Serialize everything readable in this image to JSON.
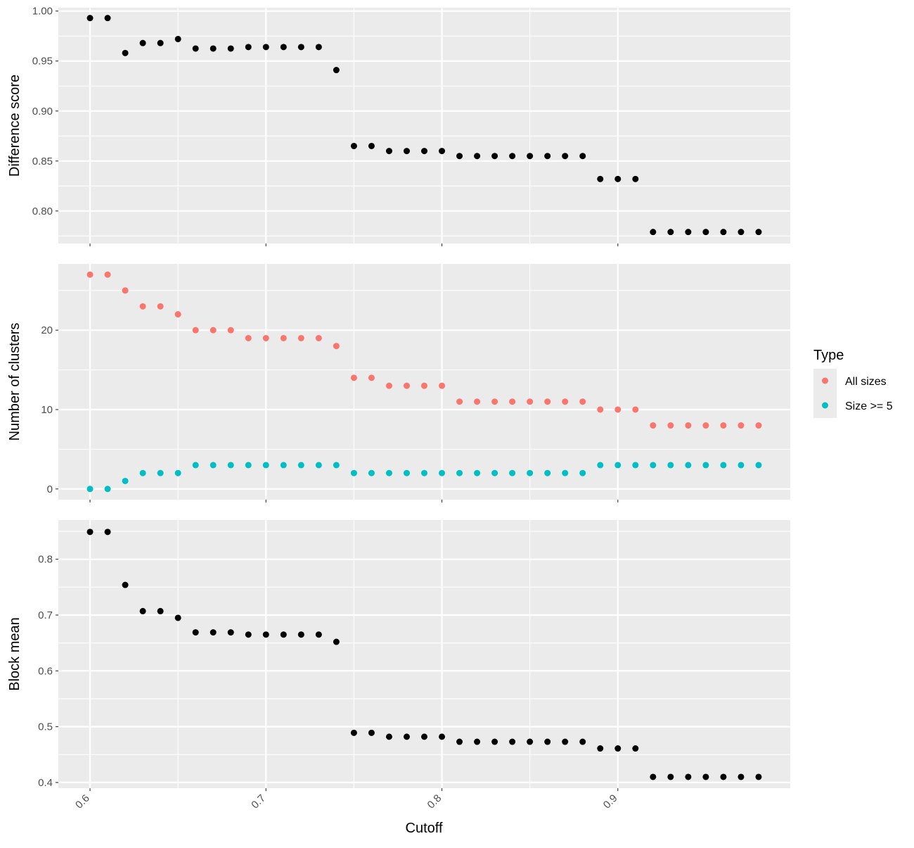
{
  "chart_data": {
    "type": "scatter",
    "facet_layout": "stacked-vertical",
    "shared_x": true,
    "xlabel": "Cutoff",
    "xlim": [
      0.582,
      0.998
    ],
    "xticks": [
      0.6,
      0.7,
      0.8,
      0.9
    ],
    "xtick_labels": [
      "0.6",
      "0.7",
      "0.8",
      "0.9"
    ],
    "x": [
      0.6,
      0.61,
      0.62,
      0.63,
      0.64,
      0.65,
      0.66,
      0.67,
      0.68,
      0.69,
      0.7,
      0.71,
      0.72,
      0.73,
      0.74,
      0.75,
      0.76,
      0.77,
      0.78,
      0.79,
      0.8,
      0.81,
      0.82,
      0.83,
      0.84,
      0.85,
      0.86,
      0.87,
      0.88,
      0.89,
      0.9,
      0.91,
      0.92,
      0.93,
      0.94,
      0.95,
      0.96,
      0.97,
      0.98
    ],
    "grid": true,
    "panel_background": "#ebebeb",
    "grid_color": "#ffffff",
    "legend": {
      "title": "Type",
      "placement": "right",
      "entries": [
        {
          "label": "All sizes",
          "color": "#F8766D"
        },
        {
          "label": "Size >= 5",
          "color": "#00BFC4"
        }
      ]
    },
    "panels": [
      {
        "ylabel": "Difference score",
        "ylim": [
          0.7675,
          1.0033
        ],
        "yticks": [
          0.8,
          0.85,
          0.9,
          0.95,
          1.0
        ],
        "ytick_labels": [
          "0.80",
          "0.85",
          "0.90",
          "0.95",
          "1.00"
        ],
        "series": [
          {
            "color": "#000000",
            "values": [
              0.993,
              0.993,
              0.958,
              0.968,
              0.968,
              0.972,
              0.9625,
              0.9625,
              0.9625,
              0.964,
              0.964,
              0.964,
              0.964,
              0.964,
              0.941,
              0.865,
              0.865,
              0.86,
              0.86,
              0.86,
              0.86,
              0.855,
              0.855,
              0.855,
              0.855,
              0.855,
              0.855,
              0.855,
              0.855,
              0.832,
              0.832,
              0.832,
              0.779,
              0.779,
              0.779,
              0.779,
              0.779,
              0.779,
              0.779
            ]
          }
        ]
      },
      {
        "ylabel": "Number of clusters",
        "ylim": [
          -1.35,
          28.35
        ],
        "yticks": [
          0,
          10,
          20
        ],
        "ytick_labels": [
          "0",
          "10",
          "20"
        ],
        "series": [
          {
            "name": "All sizes",
            "color": "#F8766D",
            "values": [
              27,
              27,
              25,
              23,
              23,
              22,
              20,
              20,
              20,
              19,
              19,
              19,
              19,
              19,
              18,
              14,
              14,
              13,
              13,
              13,
              13,
              11,
              11,
              11,
              11,
              11,
              11,
              11,
              11,
              10,
              10,
              10,
              8,
              8,
              8,
              8,
              8,
              8,
              8
            ]
          },
          {
            "name": "Size >= 5",
            "color": "#00BFC4",
            "values": [
              0,
              0,
              1,
              2,
              2,
              2,
              3,
              3,
              3,
              3,
              3,
              3,
              3,
              3,
              3,
              2,
              2,
              2,
              2,
              2,
              2,
              2,
              2,
              2,
              2,
              2,
              2,
              2,
              2,
              3,
              3,
              3,
              3,
              3,
              3,
              3,
              3,
              3,
              3
            ]
          }
        ]
      },
      {
        "ylabel": "Block mean",
        "ylim": [
          0.3898,
          0.8702
        ],
        "yticks": [
          0.4,
          0.5,
          0.6,
          0.7,
          0.8
        ],
        "ytick_labels": [
          "0.4",
          "0.5",
          "0.6",
          "0.7",
          "0.8"
        ],
        "series": [
          {
            "color": "#000000",
            "values": [
              0.849,
              0.849,
              0.754,
              0.707,
              0.707,
              0.695,
              0.669,
              0.669,
              0.669,
              0.665,
              0.665,
              0.665,
              0.665,
              0.665,
              0.652,
              0.489,
              0.489,
              0.482,
              0.482,
              0.482,
              0.482,
              0.473,
              0.473,
              0.473,
              0.473,
              0.473,
              0.473,
              0.473,
              0.473,
              0.461,
              0.461,
              0.461,
              0.41,
              0.41,
              0.41,
              0.41,
              0.41,
              0.41,
              0.41
            ]
          }
        ]
      }
    ]
  }
}
